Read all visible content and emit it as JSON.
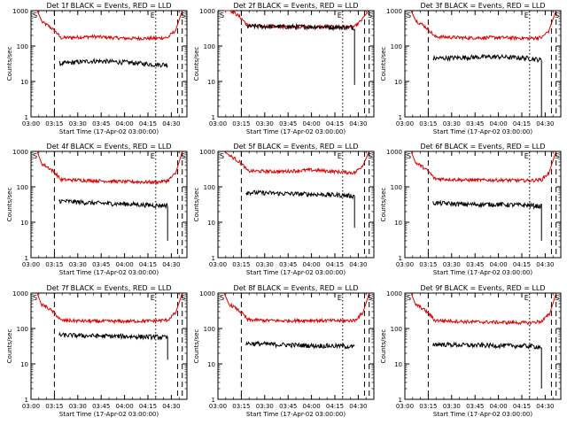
{
  "colors": {
    "events": "#000000",
    "lld": "#dd0000",
    "axis": "#000000",
    "background": "#ffffff"
  },
  "axis_common": {
    "xlabel": "Start Time (17-Apr-02 03:00:00)",
    "ylabel": "Counts/sec",
    "xticks": [
      "03:00",
      "03:15",
      "03:30",
      "03:45",
      "04:00",
      "04:15",
      "04:30"
    ],
    "yticks": [
      "1",
      "10",
      "100",
      "1000"
    ],
    "ylim": [
      1,
      1000
    ],
    "yscale": "log",
    "xlim_minutes": [
      0,
      100
    ],
    "corner_labels": [
      "S",
      "E",
      "S"
    ]
  },
  "chart_data": [
    {
      "type": "line",
      "title": "Det 1f BLACK = Events, RED = LLD",
      "series": [
        {
          "name": "Events",
          "color": "#000000",
          "values": [
            32,
            38,
            35,
            30,
            30
          ]
        },
        {
          "name": "LLD",
          "color": "#dd0000",
          "values": [
            170,
            185,
            165,
            165,
            175
          ]
        }
      ],
      "x_minutes": [
        19,
        40,
        60,
        80,
        88
      ],
      "vlines_dashed": [
        15
      ],
      "vlines_dotted": [
        80
      ],
      "drop_to": null,
      "ylim": [
        1,
        1000
      ],
      "yscale": "log"
    },
    {
      "type": "line",
      "title": "Det 2f BLACK = Events, RED = LLD",
      "series": [
        {
          "name": "Events",
          "color": "#000000",
          "values": [
            360,
            355,
            350,
            340,
            330
          ]
        },
        {
          "name": "LLD",
          "color": "#dd0000",
          "values": [
            380,
            350,
            350,
            350,
            355
          ]
        }
      ],
      "x_minutes": [
        19,
        40,
        60,
        80,
        88
      ],
      "vlines_dashed": [
        15
      ],
      "vlines_dotted": [
        80
      ],
      "drop_to": 8,
      "ylim": [
        1,
        1000
      ],
      "yscale": "log"
    },
    {
      "type": "line",
      "title": "Det 3f BLACK = Events, RED = LLD",
      "series": [
        {
          "name": "Events",
          "color": "#000000",
          "values": [
            45,
            48,
            50,
            45,
            40
          ]
        },
        {
          "name": "LLD",
          "color": "#dd0000",
          "values": [
            185,
            170,
            175,
            165,
            175
          ]
        }
      ],
      "x_minutes": [
        19,
        40,
        60,
        80,
        88
      ],
      "vlines_dashed": [
        15
      ],
      "vlines_dotted": [
        80
      ],
      "drop_to": 1,
      "ylim": [
        1,
        1000
      ],
      "yscale": "log"
    },
    {
      "type": "line",
      "title": "Det 4f BLACK = Events, RED = LLD",
      "series": [
        {
          "name": "Events",
          "color": "#000000",
          "values": [
            40,
            35,
            33,
            30,
            30
          ]
        },
        {
          "name": "LLD",
          "color": "#dd0000",
          "values": [
            160,
            150,
            140,
            135,
            150
          ]
        }
      ],
      "x_minutes": [
        19,
        40,
        60,
        80,
        88
      ],
      "vlines_dashed": [
        15
      ],
      "vlines_dotted": [
        80
      ],
      "drop_to": 3,
      "ylim": [
        1,
        1000
      ],
      "yscale": "log"
    },
    {
      "type": "line",
      "title": "Det 5f BLACK = Events, RED = LLD",
      "series": [
        {
          "name": "Events",
          "color": "#000000",
          "values": [
            70,
            65,
            62,
            58,
            55
          ]
        },
        {
          "name": "LLD",
          "color": "#dd0000",
          "values": [
            280,
            270,
            300,
            260,
            250
          ]
        }
      ],
      "x_minutes": [
        19,
        40,
        60,
        80,
        88
      ],
      "vlines_dashed": [
        15
      ],
      "vlines_dotted": [
        80
      ],
      "drop_to": 7,
      "ylim": [
        1,
        1000
      ],
      "yscale": "log"
    },
    {
      "type": "line",
      "title": "Det 6f BLACK = Events, RED = LLD",
      "series": [
        {
          "name": "Events",
          "color": "#000000",
          "values": [
            35,
            32,
            32,
            30,
            28
          ]
        },
        {
          "name": "LLD",
          "color": "#dd0000",
          "values": [
            170,
            155,
            155,
            150,
            160
          ]
        }
      ],
      "x_minutes": [
        19,
        40,
        60,
        80,
        88
      ],
      "vlines_dashed": [
        15
      ],
      "vlines_dotted": [
        80
      ],
      "drop_to": 3,
      "ylim": [
        1,
        1000
      ],
      "yscale": "log"
    },
    {
      "type": "line",
      "title": "Det 7f BLACK = Events, RED = LLD",
      "series": [
        {
          "name": "Events",
          "color": "#000000",
          "values": [
            65,
            62,
            60,
            58,
            55
          ]
        },
        {
          "name": "LLD",
          "color": "#dd0000",
          "values": [
            170,
            160,
            160,
            165,
            175
          ]
        }
      ],
      "x_minutes": [
        19,
        40,
        60,
        80,
        88
      ],
      "vlines_dashed": [
        15
      ],
      "vlines_dotted": [
        80
      ],
      "drop_to": 13,
      "ylim": [
        1,
        1000
      ],
      "yscale": "log"
    },
    {
      "type": "line",
      "title": "Det 8f BLACK = Events, RED = LLD",
      "series": [
        {
          "name": "Events",
          "color": "#000000",
          "values": [
            38,
            35,
            33,
            32,
            30
          ]
        },
        {
          "name": "LLD",
          "color": "#dd0000",
          "values": [
            175,
            165,
            170,
            165,
            170
          ]
        }
      ],
      "x_minutes": [
        19,
        40,
        60,
        80,
        88
      ],
      "vlines_dashed": [
        15
      ],
      "vlines_dotted": [
        80
      ],
      "drop_to": null,
      "ylim": [
        1,
        1000
      ],
      "yscale": "log"
    },
    {
      "type": "line",
      "title": "Det 9f BLACK = Events, RED = LLD",
      "series": [
        {
          "name": "Events",
          "color": "#000000",
          "values": [
            36,
            34,
            33,
            32,
            30
          ]
        },
        {
          "name": "LLD",
          "color": "#dd0000",
          "values": [
            170,
            155,
            150,
            145,
            160
          ]
        }
      ],
      "x_minutes": [
        19,
        40,
        60,
        80,
        88
      ],
      "vlines_dashed": [
        15
      ],
      "vlines_dotted": [
        80
      ],
      "drop_to": 2,
      "ylim": [
        1,
        1000
      ],
      "yscale": "log"
    }
  ]
}
